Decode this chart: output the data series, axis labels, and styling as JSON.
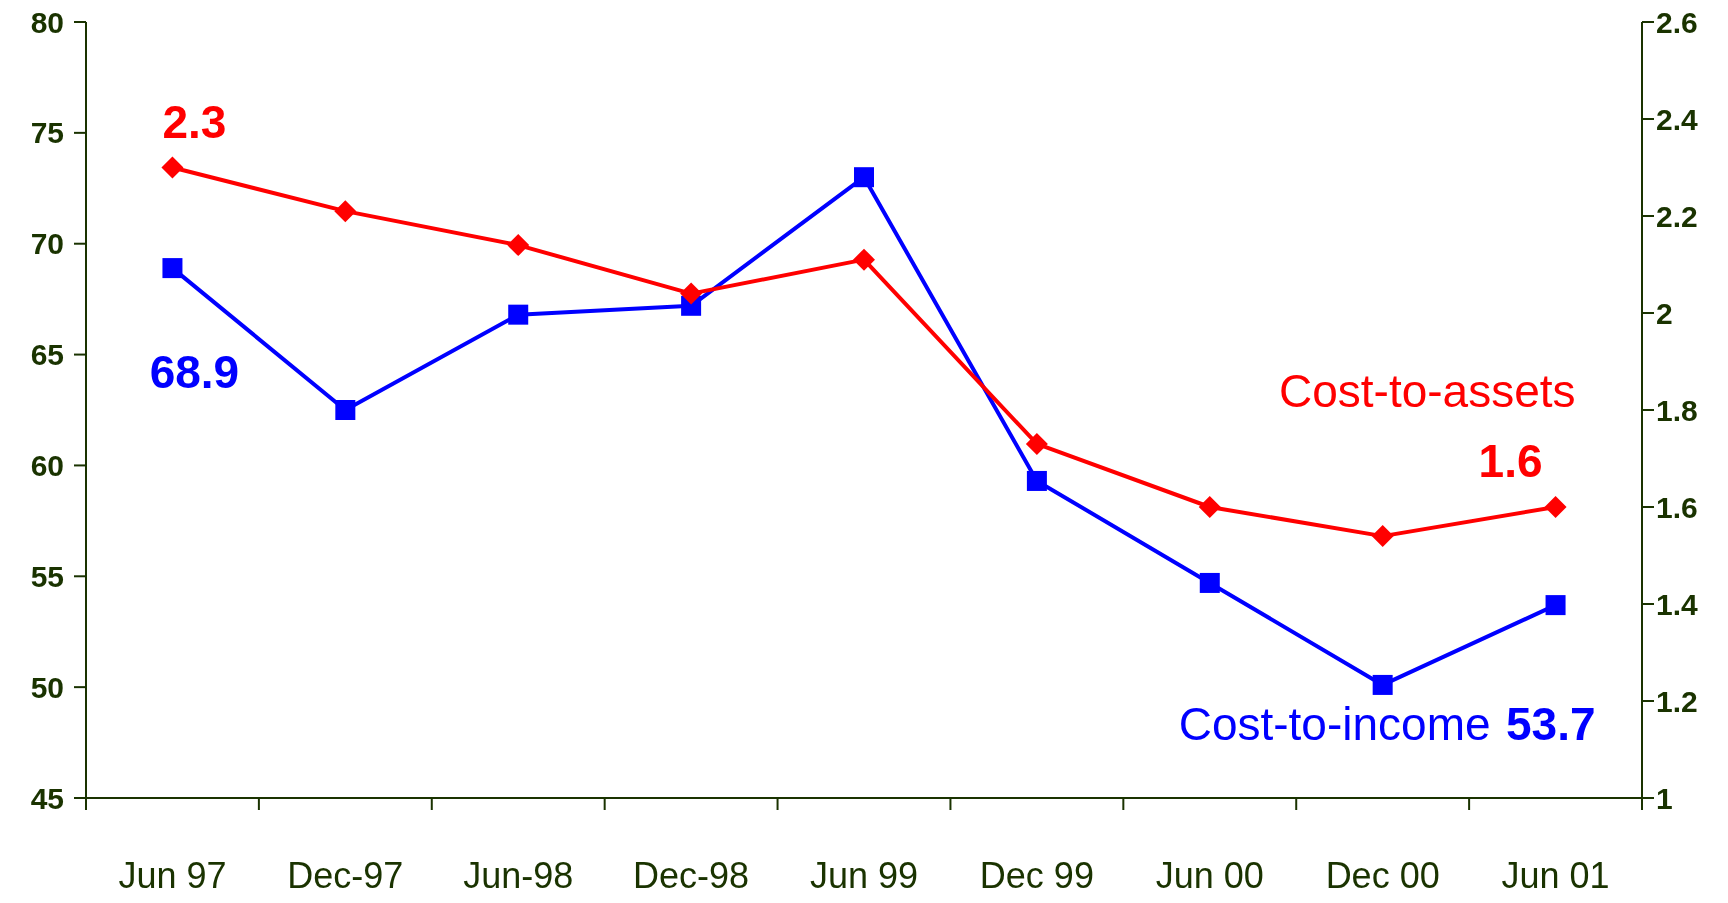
{
  "chart_data": {
    "type": "line",
    "categories": [
      "Jun 97",
      "Dec-97",
      "Jun-98",
      "Dec-98",
      "Jun 99",
      "Dec 99",
      "Jun 00",
      "Dec 00",
      "Jun 01"
    ],
    "ylim": [
      45,
      80
    ],
    "yticks": [
      45,
      50,
      55,
      60,
      65,
      70,
      75,
      80
    ],
    "y2lim": [
      1,
      2.6
    ],
    "y2ticks": [
      {
        "value": 1,
        "label": "1"
      },
      {
        "value": 1.2,
        "label": "1.2"
      },
      {
        "value": 1.4,
        "label": "1.4"
      },
      {
        "value": 1.6,
        "label": "1.6"
      },
      {
        "value": 1.8,
        "label": "1.8"
      },
      {
        "value": 2,
        "label": "2"
      },
      {
        "value": 2.2,
        "label": "2.2"
      },
      {
        "value": 2.4,
        "label": "2.4"
      },
      {
        "value": 2.6,
        "label": "2.6"
      }
    ],
    "grid": false,
    "series": [
      {
        "name": "Cost-to-income",
        "color": "#0000ff",
        "marker": "square",
        "values": [
          68.9,
          62.5,
          66.8,
          67.2,
          73.0,
          59.3,
          54.7,
          50.1,
          53.7
        ],
        "value_labels": [
          "68.9",
          null,
          null,
          null,
          null,
          null,
          null,
          null,
          "53.7"
        ]
      },
      {
        "name": "Cost-to-assets",
        "color": "#ff0000",
        "marker": "diamond",
        "axis": "y2",
        "values": [
          2.3,
          2.21,
          2.14,
          2.04,
          2.11,
          1.73,
          1.6,
          1.54,
          1.6
        ],
        "value_labels": [
          "2.3",
          null,
          null,
          null,
          null,
          null,
          null,
          null,
          "1.6"
        ]
      }
    ]
  }
}
